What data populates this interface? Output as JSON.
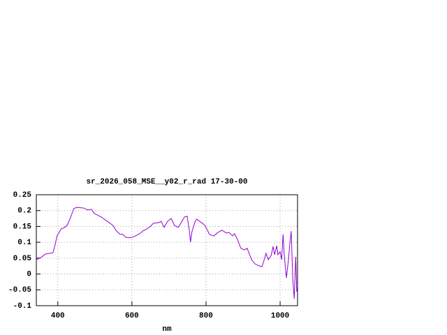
{
  "chart_data": {
    "type": "line",
    "title": "sr_2026_058_MSE__y02_r_rad 17-30-00",
    "x_label": "nm",
    "color": "#9400d3",
    "grid": true,
    "xlim": [
      342,
      1047
    ],
    "xticks": [
      400,
      600,
      800,
      1000
    ],
    "ylim": [
      -0.1,
      0.25
    ],
    "yticks": [
      0.25,
      0.2,
      0.15,
      0.1,
      0.05,
      0,
      -0.05,
      -0.1
    ],
    "x": [
      342,
      357,
      366,
      379,
      387,
      392,
      398,
      409,
      419,
      426,
      434,
      443,
      451,
      470,
      481,
      491,
      498,
      517,
      536,
      549,
      558,
      568,
      575,
      583,
      594,
      606,
      621,
      630,
      640,
      649,
      658,
      672,
      679,
      687,
      696,
      706,
      715,
      725,
      734,
      742,
      749,
      755,
      758,
      762,
      770,
      775,
      785,
      796,
      804,
      809,
      821,
      832,
      843,
      855,
      862,
      872,
      877,
      885,
      894,
      904,
      911,
      923,
      932,
      942,
      951,
      957,
      962,
      968,
      976,
      981,
      985,
      991,
      994,
      1000,
      1004,
      1008,
      1011,
      1017,
      1023,
      1026,
      1030,
      1034,
      1038,
      1042,
      1045,
      1047
    ],
    "values": [
      0.045,
      0.054,
      0.063,
      0.065,
      0.067,
      0.089,
      0.12,
      0.142,
      0.147,
      0.155,
      0.177,
      0.206,
      0.21,
      0.208,
      0.202,
      0.204,
      0.191,
      0.18,
      0.164,
      0.153,
      0.136,
      0.125,
      0.125,
      0.116,
      0.114,
      0.118,
      0.127,
      0.136,
      0.142,
      0.149,
      0.16,
      0.162,
      0.166,
      0.147,
      0.166,
      0.175,
      0.153,
      0.147,
      0.164,
      0.18,
      0.182,
      0.138,
      0.1,
      0.133,
      0.164,
      0.173,
      0.164,
      0.155,
      0.138,
      0.125,
      0.12,
      0.131,
      0.138,
      0.129,
      0.131,
      0.12,
      0.127,
      0.109,
      0.081,
      0.076,
      0.081,
      0.045,
      0.032,
      0.026,
      0.023,
      0.045,
      0.065,
      0.045,
      0.059,
      0.087,
      0.061,
      0.089,
      0.061,
      0.07,
      0.045,
      0.125,
      0.061,
      -0.012,
      0.05,
      0.094,
      0.135,
      -0.012,
      -0.078,
      0.054,
      -0.056,
      -0.034
    ]
  }
}
